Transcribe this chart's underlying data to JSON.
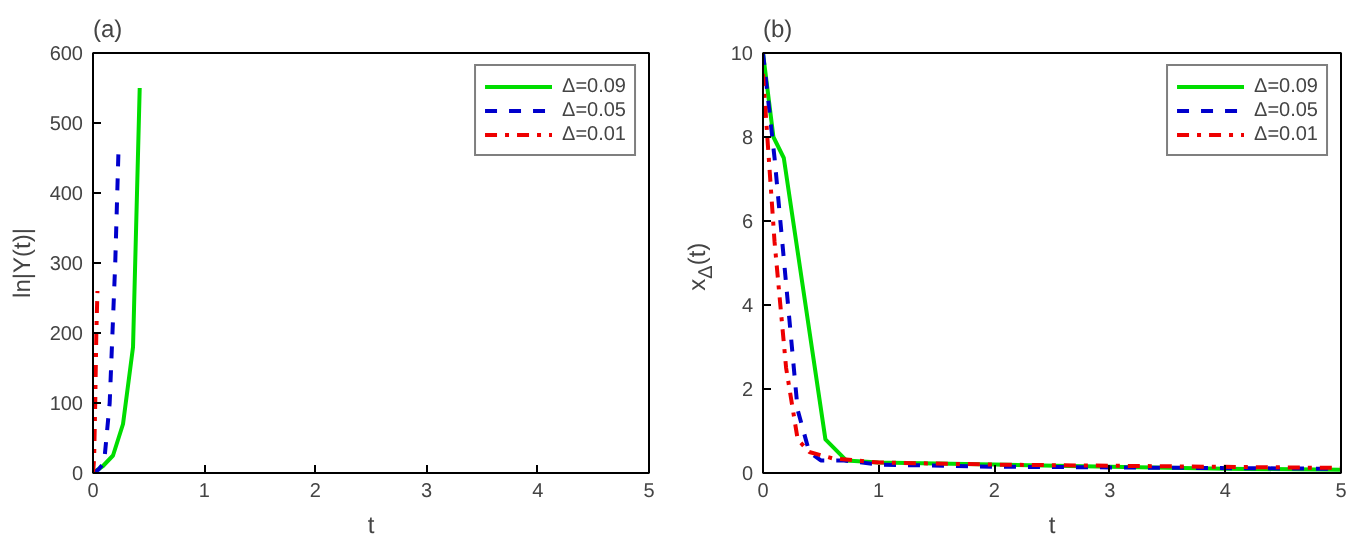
{
  "chart_data": [
    {
      "type": "line",
      "title": "(a)",
      "xlabel": "t",
      "ylabel": "ln|Y(t)|",
      "xlim": [
        0,
        5
      ],
      "ylim": [
        0,
        600
      ],
      "xticks": [
        0,
        1,
        2,
        3,
        4,
        5
      ],
      "yticks": [
        0,
        100,
        200,
        300,
        400,
        500,
        600
      ],
      "grid": false,
      "legend": "top right",
      "series": [
        {
          "name": "Δ=0.09",
          "color": "#00dd00",
          "line_style": "solid",
          "x": [
            0,
            0.09,
            0.18,
            0.27,
            0.36,
            0.42
          ],
          "values": [
            0,
            10,
            25,
            70,
            180,
            550
          ]
        },
        {
          "name": "Δ=0.05",
          "color": "#0000cc",
          "line_style": "dashed",
          "x": [
            0,
            0.05,
            0.1,
            0.15,
            0.2,
            0.23
          ],
          "values": [
            0,
            5,
            15,
            100,
            300,
            465
          ]
        },
        {
          "name": "Δ=0.01",
          "color": "#ee0000",
          "line_style": "dashdot",
          "x": [
            0,
            0.01,
            0.02,
            0.03,
            0.04
          ],
          "values": [
            0,
            20,
            100,
            200,
            260
          ]
        }
      ]
    },
    {
      "type": "line",
      "title": "(b)",
      "xlabel": "t",
      "ylabel": "x$_{Δ}$(t)",
      "xlim": [
        0,
        5
      ],
      "ylim": [
        0,
        10
      ],
      "xticks": [
        0,
        1,
        2,
        3,
        4,
        5
      ],
      "yticks": [
        0,
        2,
        4,
        6,
        8,
        10
      ],
      "grid": false,
      "legend": "top right",
      "series": [
        {
          "name": "Δ=0.09",
          "color": "#00dd00",
          "line_style": "solid",
          "x": [
            0,
            0.09,
            0.18,
            0.54,
            0.72,
            1,
            2,
            3,
            4,
            5
          ],
          "values": [
            10,
            8,
            7.5,
            0.8,
            0.3,
            0.25,
            0.2,
            0.15,
            0.1,
            0.08
          ]
        },
        {
          "name": "Δ=0.05",
          "color": "#0000cc",
          "line_style": "dashed",
          "x": [
            0,
            0.1,
            0.2,
            0.3,
            0.4,
            0.5,
            0.7,
            1,
            2,
            5
          ],
          "values": [
            10,
            7.5,
            4.5,
            1.5,
            0.5,
            0.3,
            0.3,
            0.2,
            0.15,
            0.1
          ]
        },
        {
          "name": "Δ=0.01",
          "color": "#ee0000",
          "line_style": "dashdot",
          "x": [
            0,
            0.05,
            0.1,
            0.2,
            0.3,
            0.4,
            0.6,
            1,
            2,
            5
          ],
          "values": [
            9.5,
            7.5,
            5.5,
            2.5,
            0.8,
            0.5,
            0.35,
            0.25,
            0.2,
            0.12
          ]
        }
      ]
    }
  ]
}
